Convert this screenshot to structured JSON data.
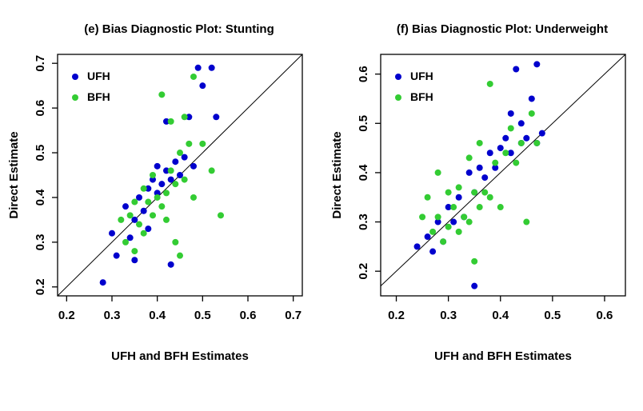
{
  "page": {
    "background": "#ffffff"
  },
  "colors": {
    "ufh": "#0000CD",
    "bfh": "#33CC33",
    "axis": "#000000"
  },
  "chart_data": [
    {
      "type": "scatter",
      "title": "(e) Bias Diagnostic Plot: Stunting",
      "xlabel": "UFH and BFH Estimates",
      "ylabel": "Direct Estimate",
      "xlim": [
        0.18,
        0.72
      ],
      "ylim": [
        0.18,
        0.72
      ],
      "xticks": [
        0.2,
        0.3,
        0.4,
        0.5,
        0.6,
        0.7
      ],
      "yticks": [
        0.2,
        0.3,
        0.4,
        0.5,
        0.6,
        0.7
      ],
      "identity_line": true,
      "legend": [
        {
          "label": "UFH",
          "color": "#0000CD"
        },
        {
          "label": "BFH",
          "color": "#33CC33"
        }
      ],
      "series": [
        {
          "name": "UFH",
          "color": "#0000CD",
          "points": [
            [
              0.28,
              0.21
            ],
            [
              0.3,
              0.32
            ],
            [
              0.31,
              0.27
            ],
            [
              0.33,
              0.38
            ],
            [
              0.34,
              0.31
            ],
            [
              0.35,
              0.35
            ],
            [
              0.35,
              0.26
            ],
            [
              0.36,
              0.4
            ],
            [
              0.37,
              0.37
            ],
            [
              0.38,
              0.42
            ],
            [
              0.38,
              0.33
            ],
            [
              0.39,
              0.44
            ],
            [
              0.4,
              0.41
            ],
            [
              0.4,
              0.47
            ],
            [
              0.41,
              0.43
            ],
            [
              0.42,
              0.46
            ],
            [
              0.42,
              0.57
            ],
            [
              0.43,
              0.44
            ],
            [
              0.43,
              0.25
            ],
            [
              0.44,
              0.48
            ],
            [
              0.45,
              0.45
            ],
            [
              0.46,
              0.49
            ],
            [
              0.47,
              0.58
            ],
            [
              0.48,
              0.47
            ],
            [
              0.49,
              0.69
            ],
            [
              0.5,
              0.65
            ],
            [
              0.52,
              0.69
            ],
            [
              0.53,
              0.58
            ]
          ]
        },
        {
          "name": "BFH",
          "color": "#33CC33",
          "points": [
            [
              0.32,
              0.35
            ],
            [
              0.33,
              0.3
            ],
            [
              0.34,
              0.36
            ],
            [
              0.35,
              0.28
            ],
            [
              0.35,
              0.39
            ],
            [
              0.36,
              0.34
            ],
            [
              0.37,
              0.42
            ],
            [
              0.37,
              0.32
            ],
            [
              0.38,
              0.39
            ],
            [
              0.39,
              0.36
            ],
            [
              0.39,
              0.45
            ],
            [
              0.4,
              0.4
            ],
            [
              0.41,
              0.38
            ],
            [
              0.41,
              0.63
            ],
            [
              0.42,
              0.41
            ],
            [
              0.42,
              0.35
            ],
            [
              0.43,
              0.57
            ],
            [
              0.43,
              0.46
            ],
            [
              0.44,
              0.43
            ],
            [
              0.44,
              0.3
            ],
            [
              0.45,
              0.5
            ],
            [
              0.45,
              0.27
            ],
            [
              0.46,
              0.58
            ],
            [
              0.46,
              0.44
            ],
            [
              0.47,
              0.52
            ],
            [
              0.48,
              0.67
            ],
            [
              0.48,
              0.4
            ],
            [
              0.5,
              0.52
            ],
            [
              0.52,
              0.46
            ],
            [
              0.54,
              0.36
            ]
          ]
        }
      ]
    },
    {
      "type": "scatter",
      "title": "(f) Bias Diagnostic Plot: Underweight",
      "xlabel": "UFH and BFH Estimates",
      "ylabel": "Direct Estimate",
      "xlim": [
        0.17,
        0.64
      ],
      "ylim": [
        0.15,
        0.64
      ],
      "xticks": [
        0.2,
        0.3,
        0.4,
        0.5,
        0.6
      ],
      "yticks": [
        0.2,
        0.3,
        0.4,
        0.5,
        0.6
      ],
      "identity_line": true,
      "legend": [
        {
          "label": "UFH",
          "color": "#0000CD"
        },
        {
          "label": "BFH",
          "color": "#33CC33"
        }
      ],
      "series": [
        {
          "name": "UFH",
          "color": "#0000CD",
          "points": [
            [
              0.24,
              0.25
            ],
            [
              0.26,
              0.27
            ],
            [
              0.27,
              0.24
            ],
            [
              0.28,
              0.3
            ],
            [
              0.29,
              0.26
            ],
            [
              0.3,
              0.33
            ],
            [
              0.31,
              0.3
            ],
            [
              0.32,
              0.35
            ],
            [
              0.33,
              0.31
            ],
            [
              0.34,
              0.4
            ],
            [
              0.35,
              0.36
            ],
            [
              0.35,
              0.17
            ],
            [
              0.36,
              0.41
            ],
            [
              0.37,
              0.39
            ],
            [
              0.38,
              0.44
            ],
            [
              0.39,
              0.41
            ],
            [
              0.4,
              0.45
            ],
            [
              0.41,
              0.47
            ],
            [
              0.42,
              0.44
            ],
            [
              0.42,
              0.52
            ],
            [
              0.43,
              0.61
            ],
            [
              0.44,
              0.46
            ],
            [
              0.44,
              0.5
            ],
            [
              0.45,
              0.47
            ],
            [
              0.46,
              0.55
            ],
            [
              0.47,
              0.62
            ],
            [
              0.47,
              0.46
            ],
            [
              0.48,
              0.48
            ]
          ]
        },
        {
          "name": "BFH",
          "color": "#33CC33",
          "points": [
            [
              0.25,
              0.31
            ],
            [
              0.26,
              0.35
            ],
            [
              0.27,
              0.28
            ],
            [
              0.28,
              0.4
            ],
            [
              0.28,
              0.31
            ],
            [
              0.29,
              0.26
            ],
            [
              0.3,
              0.36
            ],
            [
              0.3,
              0.29
            ],
            [
              0.31,
              0.33
            ],
            [
              0.32,
              0.28
            ],
            [
              0.32,
              0.37
            ],
            [
              0.33,
              0.31
            ],
            [
              0.34,
              0.43
            ],
            [
              0.34,
              0.3
            ],
            [
              0.35,
              0.36
            ],
            [
              0.35,
              0.22
            ],
            [
              0.36,
              0.33
            ],
            [
              0.36,
              0.46
            ],
            [
              0.37,
              0.36
            ],
            [
              0.38,
              0.58
            ],
            [
              0.38,
              0.35
            ],
            [
              0.39,
              0.42
            ],
            [
              0.4,
              0.33
            ],
            [
              0.41,
              0.44
            ],
            [
              0.42,
              0.49
            ],
            [
              0.43,
              0.42
            ],
            [
              0.44,
              0.46
            ],
            [
              0.45,
              0.3
            ],
            [
              0.46,
              0.52
            ],
            [
              0.47,
              0.46
            ]
          ]
        }
      ]
    }
  ]
}
